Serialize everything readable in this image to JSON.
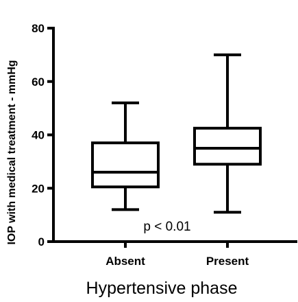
{
  "chart_data": {
    "type": "box",
    "categories": [
      "Absent",
      "Present"
    ],
    "boxes": [
      {
        "category": "Absent",
        "min": 12,
        "q1": 20.5,
        "median": 26,
        "q3": 37,
        "max": 52
      },
      {
        "category": "Present",
        "min": 11,
        "q1": 29,
        "median": 35,
        "q3": 42.5,
        "max": 70
      }
    ],
    "ylabel": "IOP with medical treatment - mmHg",
    "xlabel": "Hypertensive phase",
    "ylim": [
      0,
      80
    ],
    "yticks": [
      "0",
      "20",
      "40",
      "60",
      "80"
    ],
    "annotation": "p < 0.01",
    "grid": false
  }
}
